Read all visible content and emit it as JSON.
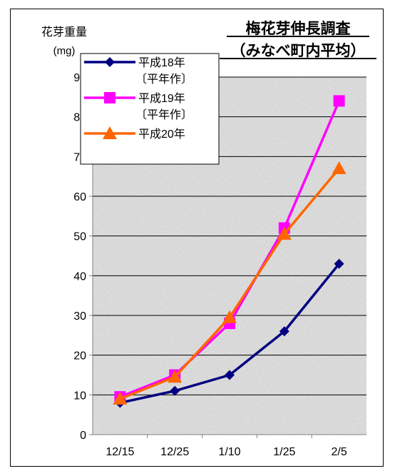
{
  "chart_data": {
    "type": "line",
    "title_line1": "梅花芽伸長調査",
    "title_line2": "（みなべ町内平均）",
    "ylabel_line1": "花芽重量",
    "ylabel_line2": "(mg)",
    "categories": [
      "12/15",
      "12/25",
      "1/10",
      "1/25",
      "2/5"
    ],
    "ylim": [
      0,
      90
    ],
    "yticks": [
      0,
      10,
      20,
      30,
      40,
      50,
      60,
      70,
      80,
      90
    ],
    "grid": true,
    "legend_position": "top-left",
    "series": [
      {
        "name_line1": "平成18年",
        "name_line2": "〔平年作〕",
        "values": [
          8,
          11,
          15,
          26,
          43
        ],
        "color": "#000080",
        "marker": "diamond"
      },
      {
        "name_line1": "平成19年",
        "name_line2": "〔平年作〕",
        "values": [
          9.5,
          15,
          28,
          52,
          84
        ],
        "color": "#ff00ff",
        "marker": "square"
      },
      {
        "name_line1": "平成20年",
        "name_line2": "",
        "values": [
          9,
          14.5,
          29.5,
          50.5,
          67
        ],
        "color": "#ff6600",
        "marker": "triangle"
      }
    ]
  }
}
